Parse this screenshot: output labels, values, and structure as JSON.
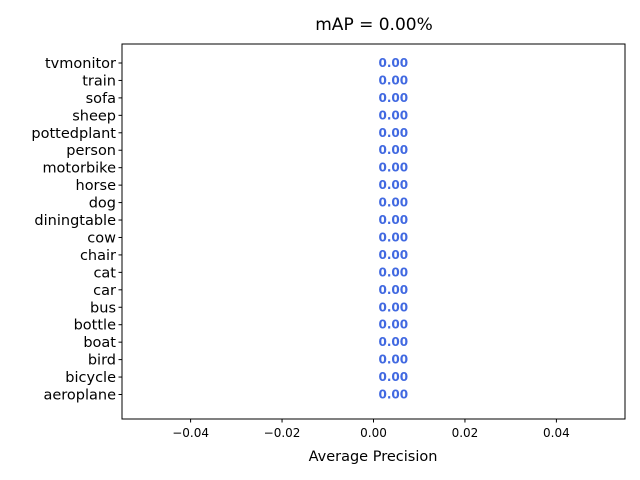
{
  "chart_data": {
    "type": "bar",
    "orientation": "horizontal",
    "title": "mAP = 0.00%",
    "xlabel": "Average Precision",
    "ylabel": "",
    "categories": [
      "aeroplane",
      "bicycle",
      "bird",
      "boat",
      "bottle",
      "bus",
      "car",
      "cat",
      "chair",
      "cow",
      "diningtable",
      "dog",
      "horse",
      "motorbike",
      "person",
      "pottedplant",
      "sheep",
      "sofa",
      "train",
      "tvmonitor"
    ],
    "values": [
      0,
      0,
      0,
      0,
      0,
      0,
      0,
      0,
      0,
      0,
      0,
      0,
      0,
      0,
      0,
      0,
      0,
      0,
      0,
      0
    ],
    "value_labels": [
      "0.00",
      "0.00",
      "0.00",
      "0.00",
      "0.00",
      "0.00",
      "0.00",
      "0.00",
      "0.00",
      "0.00",
      "0.00",
      "0.00",
      "0.00",
      "0.00",
      "0.00",
      "0.00",
      "0.00",
      "0.00",
      "0.00",
      "0.00"
    ],
    "xlim": [
      -0.055,
      0.055
    ],
    "xticks": [
      -0.04,
      -0.02,
      0.0,
      0.02,
      0.04
    ],
    "xtick_labels": [
      "−0.04",
      "−0.02",
      "0.00",
      "0.02",
      "0.04"
    ],
    "grid": false,
    "colors": {
      "value_label": "#4169e1",
      "bar": "#4169e1",
      "axis": "#000000"
    }
  }
}
